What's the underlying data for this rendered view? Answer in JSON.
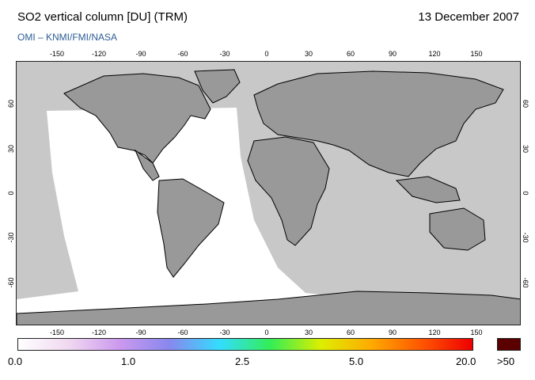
{
  "header": {
    "title": "SO2 vertical column [DU] (TRM)",
    "date": "13 December 2007",
    "credit": "OMI  –  KNMI/FMI/NASA"
  },
  "map": {
    "lon_ticks": [
      "-150",
      "-120",
      "-90",
      "-60",
      "-30",
      "0",
      "30",
      "60",
      "90",
      "120",
      "150"
    ],
    "lat_ticks": [
      "60",
      "30",
      "0",
      "-30",
      "-60"
    ],
    "colors": {
      "land": "#999999",
      "ocean": "#c8c8c8",
      "coverage": "#ffffff",
      "coastline": "#000000"
    }
  },
  "colorbar": {
    "labels": [
      "0.0",
      "1.0",
      "2.5",
      "5.0",
      "20.0"
    ],
    "overflow_label": ">50",
    "overflow_color": "#5a0000",
    "gradient": [
      "#ffffff",
      "#f0d8f0",
      "#cc99ee",
      "#8888ee",
      "#33ddff",
      "#33ee55",
      "#ddee00",
      "#ffaa00",
      "#ff5500",
      "#ee0000"
    ]
  }
}
